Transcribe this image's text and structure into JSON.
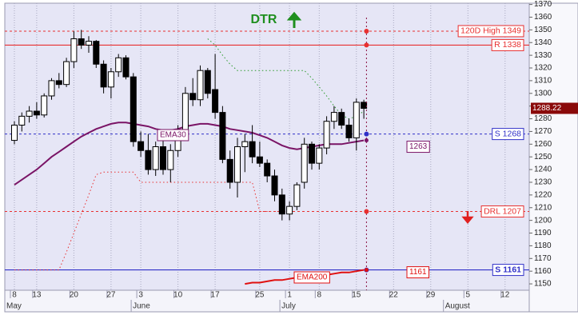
{
  "chart_data": {
    "type": "candlestick",
    "title": "DTR",
    "categories": [
      "8",
      null,
      null,
      "13",
      null,
      null,
      null,
      null,
      "20",
      null,
      null,
      null,
      null,
      "27",
      null,
      null,
      null,
      "3",
      null,
      null,
      null,
      null,
      "10",
      null,
      null,
      null,
      null,
      "17",
      null,
      null,
      null,
      null,
      null,
      "25",
      null,
      null,
      null,
      "1",
      null,
      null,
      null,
      "8",
      null,
      null,
      null,
      null,
      "15",
      null,
      null,
      null,
      null,
      "22",
      null,
      null,
      null,
      null,
      "29",
      null,
      null,
      null,
      null,
      "5",
      null,
      null,
      null,
      null,
      "12",
      null,
      null
    ],
    "months": [
      "May",
      null,
      null,
      null,
      null,
      null,
      null,
      null,
      null,
      null,
      null,
      null,
      null,
      null,
      null,
      null,
      null,
      "June",
      null,
      null,
      null,
      null,
      null,
      null,
      null,
      null,
      null,
      null,
      null,
      null,
      null,
      null,
      null,
      null,
      null,
      null,
      null,
      "July",
      null,
      null,
      null,
      null,
      null,
      null,
      null,
      null,
      null,
      null,
      null,
      null,
      null,
      null,
      null,
      null,
      null,
      null,
      null,
      null,
      null,
      "August",
      null,
      null,
      null,
      null,
      null,
      null,
      null,
      null,
      null
    ],
    "ohlc": {
      "open": [
        1263,
        1275,
        1282,
        1286,
        1283,
        1298,
        1310,
        1307,
        1325,
        1343,
        1338,
        1341,
        1323,
        1305,
        1317,
        1328,
        1313,
        1262,
        1255,
        1240,
        1258,
        1240,
        1255,
        1270,
        1300,
        1295,
        1318,
        1303,
        1285,
        1248,
        1230,
        1258,
        1262,
        1250,
        1245,
        1235,
        1220,
        1205,
        1211,
        1230,
        1260,
        1245,
        1257,
        1278,
        1285,
        1275,
        1265,
        1293,
        null,
        null,
        null,
        null,
        null,
        null,
        null,
        null,
        null,
        null,
        null,
        null,
        null,
        null,
        null,
        null,
        null,
        null,
        null,
        null,
        null
      ],
      "high": [
        1278,
        1285,
        1290,
        1293,
        1300,
        1312,
        1316,
        1328,
        1349,
        1350,
        1345,
        1342,
        1326,
        1320,
        1331,
        1330,
        1316,
        1270,
        1268,
        1262,
        1265,
        1260,
        1275,
        1305,
        1312,
        1322,
        1320,
        1331,
        1290,
        1255,
        1265,
        1268,
        1275,
        1262,
        1248,
        1240,
        1225,
        1215,
        1230,
        1265,
        1262,
        1260,
        1282,
        1290,
        1288,
        1280,
        1296,
        1295,
        null,
        null,
        null,
        null,
        null,
        null,
        null,
        null,
        null,
        null,
        null,
        null,
        null,
        null,
        null,
        null,
        null,
        null,
        null,
        null,
        null
      ],
      "low": [
        1260,
        1270,
        1277,
        1280,
        1281,
        1295,
        1304,
        1305,
        1320,
        1335,
        1332,
        1320,
        1300,
        1296,
        1313,
        1311,
        1258,
        1250,
        1236,
        1235,
        1236,
        1230,
        1250,
        1266,
        1290,
        1290,
        1296,
        1280,
        1245,
        1225,
        1218,
        1238,
        1245,
        1242,
        1230,
        1215,
        1200,
        1200,
        1208,
        1225,
        1240,
        1240,
        1252,
        1272,
        1272,
        1262,
        1255,
        1280,
        null,
        null,
        null,
        null,
        null,
        null,
        null,
        null,
        null,
        null,
        null,
        null,
        null,
        null,
        null,
        null,
        null,
        null,
        null,
        null,
        null
      ],
      "close": [
        1275,
        1282,
        1286,
        1283,
        1298,
        1310,
        1307,
        1325,
        1343,
        1338,
        1341,
        1323,
        1305,
        1317,
        1328,
        1313,
        1262,
        1255,
        1240,
        1258,
        1240,
        1255,
        1270,
        1300,
        1295,
        1318,
        1300,
        1285,
        1248,
        1230,
        1258,
        1262,
        1250,
        1245,
        1235,
        1220,
        1205,
        1211,
        1228,
        1260,
        1245,
        1257,
        1278,
        1285,
        1275,
        1265,
        1293,
        1288.22,
        null,
        null,
        null,
        null,
        null,
        null,
        null,
        null,
        null,
        null,
        null,
        null,
        null,
        null,
        null,
        null,
        null,
        null,
        null,
        null,
        null
      ]
    },
    "series": [
      {
        "name": "EMA30",
        "color": "#7a1466",
        "values": [
          1228,
          1232,
          1236,
          1240,
          1245,
          1250,
          1254,
          1258,
          1262,
          1266,
          1269,
          1272,
          1274,
          1276,
          1277,
          1277,
          1276,
          1275,
          1274,
          1272,
          1271,
          1271,
          1272,
          1274,
          1275,
          1276,
          1276,
          1275,
          1274,
          1272,
          1271,
          1270,
          1269,
          1267,
          1265,
          1262,
          1259,
          1257,
          1256,
          1257,
          1258,
          1259,
          1260,
          1260,
          1260,
          1261,
          1262,
          1263,
          null,
          null,
          null,
          null,
          null,
          null,
          null,
          null,
          null,
          null,
          null,
          null,
          null,
          null,
          null,
          null,
          null,
          null,
          null,
          null,
          null
        ]
      },
      {
        "name": "EMA200",
        "color": "#e01010",
        "values": [
          null,
          null,
          null,
          null,
          null,
          null,
          null,
          null,
          null,
          null,
          null,
          null,
          null,
          null,
          null,
          null,
          null,
          null,
          null,
          null,
          null,
          null,
          null,
          null,
          null,
          null,
          null,
          null,
          null,
          null,
          null,
          1150,
          1151,
          1151,
          1152,
          1153,
          1153,
          1154,
          1155,
          1155,
          1156,
          1157,
          1157,
          1158,
          1159,
          1159,
          1160,
          1161,
          null,
          null,
          null,
          null,
          null,
          null,
          null,
          null,
          null,
          null,
          null,
          null,
          null,
          null,
          null,
          null,
          null,
          null,
          null,
          null,
          null
        ]
      },
      {
        "color": "#e83030",
        "style": "dotted",
        "values": [
          1161,
          1161,
          1161,
          1161,
          1161,
          1161,
          1161,
          1175,
          1190,
          1205,
          1220,
          1236,
          1238,
          1238,
          1238,
          1238,
          1238,
          1230,
          1230,
          1230,
          1230,
          1230,
          1230,
          1230,
          1230,
          1230,
          1230,
          1230,
          1230,
          1230,
          1230,
          1230,
          1230,
          1207,
          1207,
          1207,
          1207,
          null,
          null,
          null,
          null,
          null,
          null,
          null,
          null,
          null,
          null,
          null,
          null,
          null,
          null,
          null,
          null,
          null,
          null,
          null,
          null,
          null,
          null,
          null,
          null,
          null,
          null,
          null,
          null,
          null,
          null,
          null,
          null
        ]
      },
      {
        "color": "#2a9a2a",
        "style": "dotted",
        "values": [
          null,
          null,
          null,
          null,
          null,
          null,
          null,
          null,
          null,
          null,
          null,
          null,
          null,
          null,
          null,
          null,
          null,
          null,
          null,
          null,
          null,
          null,
          null,
          null,
          null,
          null,
          1343,
          1338,
          1330,
          1323,
          1318,
          1318,
          1318,
          1318,
          1318,
          1318,
          1318,
          1318,
          1318,
          1318,
          1312,
          1305,
          1298,
          1290,
          1283,
          1280,
          1282,
          1286,
          null,
          null,
          null,
          null,
          null,
          null,
          null,
          null,
          null,
          null,
          null,
          null,
          null,
          null,
          null,
          null,
          null,
          null,
          null,
          null,
          null
        ]
      }
    ],
    "levels": [
      {
        "label": "120D High 1349",
        "value": 1349,
        "color": "#e83030",
        "style": "dashed"
      },
      {
        "label": "R 1338",
        "value": 1338,
        "color": "#e83030",
        "style": "solid"
      },
      {
        "label": "S 1268",
        "value": 1268,
        "color": "#3030c8",
        "style": "dashed"
      },
      {
        "label": "DRL 1207",
        "value": 1207,
        "color": "#e83030",
        "style": "dashed"
      },
      {
        "label": "S 1161",
        "value": 1161,
        "color": "#3030c8",
        "style": "solid"
      }
    ],
    "ylim": [
      1145,
      1371
    ],
    "yticks": [
      1150,
      1160,
      1170,
      1180,
      1190,
      1200,
      1210,
      1220,
      1230,
      1240,
      1250,
      1260,
      1270,
      1280,
      1290,
      1300,
      1310,
      1320,
      1330,
      1340,
      1350,
      1360,
      1370
    ],
    "up_color": "#ffffff",
    "down_color": "#000000",
    "grid": "vertical"
  }
}
